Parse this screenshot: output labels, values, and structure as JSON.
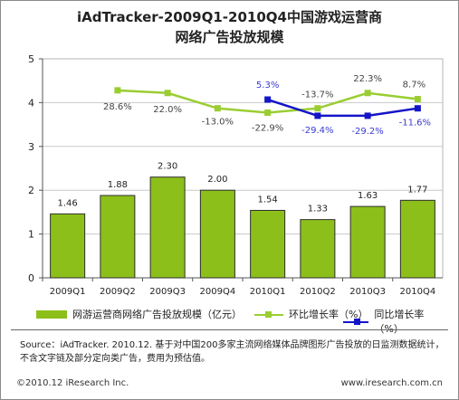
{
  "title_line1": "iAdTracker-2009Q1-2010Q4中国游戏运营商",
  "title_line2": "网络广告投放规模",
  "chart_data": {
    "type": "bar",
    "categories": [
      "2009Q1",
      "2009Q2",
      "2009Q3",
      "2009Q4",
      "2010Q1",
      "2010Q2",
      "2010Q3",
      "2010Q4"
    ],
    "ylim": [
      0,
      5
    ],
    "yticks": [
      "0",
      "1",
      "2",
      "3",
      "4",
      "5"
    ],
    "bar_series": {
      "name": "网游运营商网络广告投放规模（亿元）",
      "color": "#8cbf1a",
      "values": [
        1.46,
        1.88,
        2.3,
        2.0,
        1.54,
        1.33,
        1.63,
        1.77
      ],
      "labels": [
        "1.46",
        "1.88",
        "2.30",
        "2.00",
        "1.54",
        "1.33",
        "1.63",
        "1.77"
      ]
    },
    "line_series": [
      {
        "name": "环比增长率（%）",
        "color": "#9acd32",
        "label_color": "#444444",
        "values": [
          null,
          4.28,
          4.22,
          3.87,
          3.77,
          3.87,
          4.22,
          4.08
        ],
        "labels": [
          null,
          "28.6%",
          "22.0%",
          "-13.0%",
          "-22.9%",
          "-13.7%",
          "22.3%",
          "8.7%"
        ]
      },
      {
        "name": "同比增长率（%）",
        "color": "#1414c8",
        "label_color": "#3a3ad4",
        "values": [
          null,
          null,
          null,
          null,
          4.07,
          3.7,
          3.7,
          3.87
        ],
        "labels": [
          null,
          null,
          null,
          null,
          "5.3%",
          "-29.4%",
          "-29.2%",
          "-11.6%"
        ]
      }
    ]
  },
  "source_text": "Source：iAdTracker. 2010.12. 基于对中国200多家主流网络媒体品牌图形广告投放的日监测数据统计，不含文字链及部分定向类广告，费用为预估值。",
  "footer_left": "©2010.12 iResearch Inc.",
  "footer_right": "www.iresearch.com.cn"
}
